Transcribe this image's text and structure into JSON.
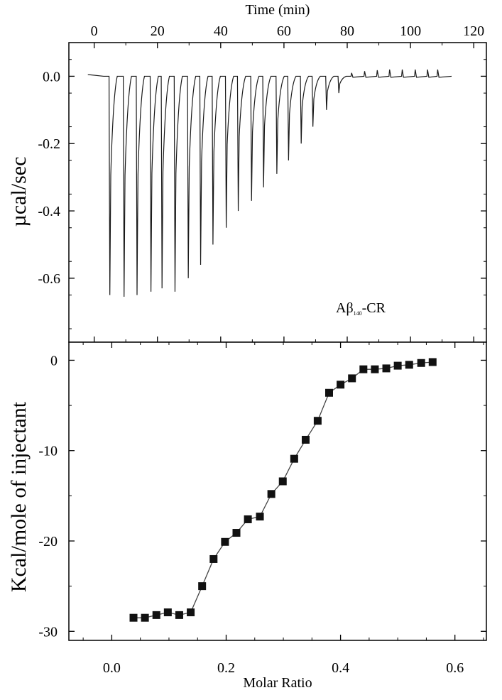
{
  "chart_data": [
    {
      "type": "line",
      "xlabel": "Time (min)",
      "ylabel": "µcal/sec",
      "annotation": {
        "main": "Aβ",
        "subscript": "140",
        "suffix": "-CR"
      },
      "xlim": [
        -8,
        124
      ],
      "ylim": [
        -0.79,
        0.1
      ],
      "x_ticks": [
        0,
        20,
        40,
        60,
        80,
        100,
        120
      ],
      "y_ticks": [
        0.0,
        -0.2,
        -0.4,
        -0.6
      ],
      "x_tick_labels": [
        "0",
        "20",
        "40",
        "60",
        "80",
        "100",
        "120"
      ],
      "y_tick_labels": [
        "0.0",
        "-0.2",
        "-0.4",
        "-0.6"
      ],
      "baseline": 0.0,
      "injection_times": [
        4.7,
        9.2,
        13.3,
        17.7,
        21.2,
        25.3,
        29.5,
        33.4,
        37.3,
        41.5,
        45.3,
        49.5,
        53.3,
        57.5,
        61.2,
        65.2,
        68.9,
        73.2,
        77.1,
        81.2,
        85.3,
        89.3,
        93.2,
        97.2,
        101.3,
        105.2,
        108.4
      ],
      "injection_peaks": [
        -0.65,
        -0.655,
        -0.65,
        -0.64,
        -0.63,
        -0.64,
        -0.6,
        -0.56,
        -0.5,
        -0.45,
        -0.4,
        -0.37,
        -0.33,
        -0.29,
        -0.25,
        -0.2,
        -0.15,
        -0.1,
        -0.05,
        0.01,
        0.015,
        0.018,
        0.02,
        0.02,
        0.02,
        0.02,
        0.02
      ]
    },
    {
      "type": "scatter",
      "xlabel": "Molar Ratio",
      "ylabel": "Kcal/mole of injectant",
      "xlim": [
        -0.075,
        0.655
      ],
      "ylim": [
        -31,
        2
      ],
      "x_ticks": [
        0.0,
        0.2,
        0.4,
        0.6
      ],
      "y_ticks": [
        0,
        -10,
        -20,
        -30
      ],
      "x_tick_labels": [
        "0.0",
        "0.2",
        "0.4",
        "0.6"
      ],
      "y_tick_labels": [
        "0",
        "-10",
        "-20",
        "-30"
      ],
      "series": [
        {
          "marker": "square",
          "x": [
            0.038,
            0.058,
            0.078,
            0.098,
            0.118,
            0.138,
            0.158,
            0.178,
            0.198,
            0.218,
            0.238,
            0.259,
            0.279,
            0.299,
            0.319,
            0.339,
            0.36,
            0.38,
            0.4,
            0.42,
            0.44,
            0.46,
            0.48,
            0.5,
            0.52,
            0.541,
            0.561
          ],
          "y": [
            -28.5,
            -28.5,
            -28.2,
            -27.9,
            -28.2,
            -27.9,
            -25.0,
            -22.0,
            -20.1,
            -19.1,
            -17.6,
            -17.3,
            -14.8,
            -13.4,
            -10.9,
            -8.8,
            -6.7,
            -3.6,
            -2.7,
            -2.0,
            -1.0,
            -1.0,
            -0.9,
            -0.6,
            -0.5,
            -0.3,
            -0.2
          ]
        }
      ],
      "fit_line": true
    }
  ]
}
